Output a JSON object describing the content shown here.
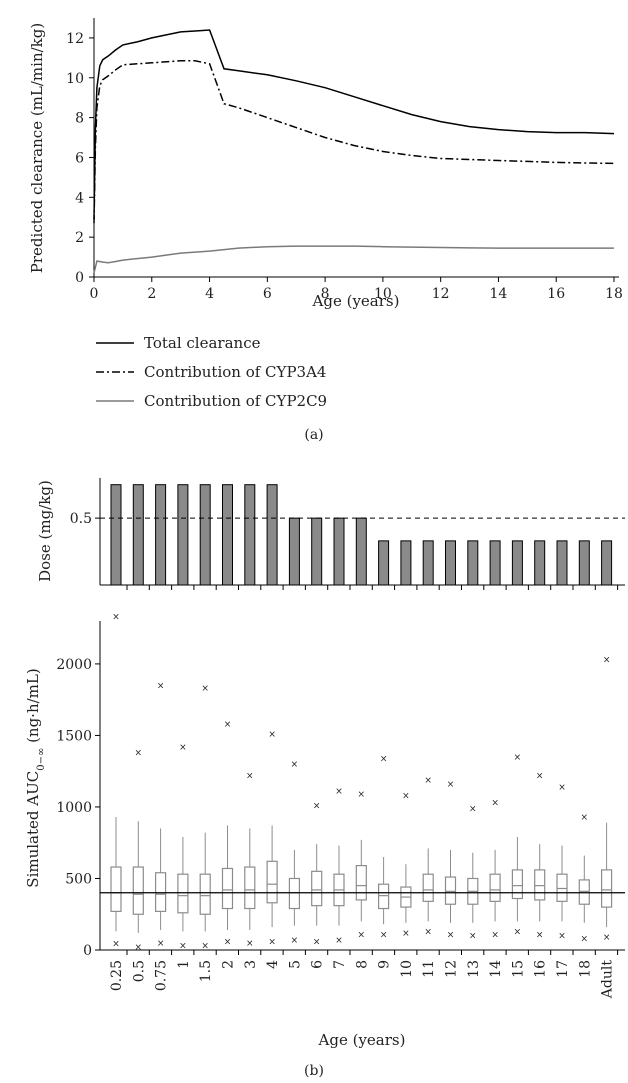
{
  "panel_a": {
    "caption": "(a)",
    "legend": [
      {
        "label": "Total clearance",
        "color": "#000000",
        "dash": "solid"
      },
      {
        "label": "Contribution of CYP3A4",
        "color": "#000000",
        "dash": "dashdot"
      },
      {
        "label": "Contribution of CYP2C9",
        "color": "#7a7a7a",
        "dash": "solid"
      }
    ]
  },
  "panel_b": {
    "caption": "(b)"
  },
  "chart_data": [
    {
      "type": "line",
      "xlabel": "Age (years)",
      "ylabel": "Predicted clearance (mL/min/kg)",
      "xlim": [
        0,
        18
      ],
      "ylim": [
        0,
        13
      ],
      "x_ticks": [
        0,
        2,
        4,
        6,
        8,
        10,
        12,
        14,
        16,
        18
      ],
      "y_ticks": [
        0,
        2,
        4,
        6,
        8,
        10,
        12
      ],
      "series": [
        {
          "name": "Total clearance",
          "color": "#000000",
          "x": [
            0,
            0.05,
            0.1,
            0.2,
            0.3,
            0.5,
            0.75,
            1,
            1.5,
            2,
            2.5,
            3,
            3.5,
            4,
            4.5,
            5,
            6,
            7,
            8,
            9,
            10,
            11,
            12,
            13,
            14,
            15,
            16,
            17,
            18
          ],
          "y": [
            2.9,
            7.5,
            9.5,
            10.6,
            10.9,
            11.1,
            11.4,
            11.65,
            11.8,
            12.0,
            12.15,
            12.3,
            12.35,
            12.4,
            10.45,
            10.35,
            10.15,
            9.85,
            9.5,
            9.05,
            8.6,
            8.15,
            7.8,
            7.55,
            7.4,
            7.3,
            7.25,
            7.25,
            7.2
          ]
        },
        {
          "name": "Contribution of CYP3A4",
          "color": "#000000",
          "x": [
            0,
            0.05,
            0.1,
            0.2,
            0.3,
            0.5,
            0.75,
            1,
            1.5,
            2,
            2.5,
            3,
            3.5,
            4,
            4.5,
            5,
            6,
            7,
            8,
            9,
            10,
            11,
            12,
            13,
            14,
            15,
            16,
            17,
            18
          ],
          "y": [
            2.7,
            6.5,
            8.5,
            9.6,
            9.9,
            10.1,
            10.4,
            10.65,
            10.7,
            10.75,
            10.8,
            10.85,
            10.85,
            10.7,
            8.7,
            8.5,
            8.0,
            7.5,
            7.0,
            6.6,
            6.3,
            6.1,
            5.95,
            5.9,
            5.85,
            5.8,
            5.75,
            5.72,
            5.7
          ]
        },
        {
          "name": "Contribution of CYP2C9",
          "color": "#7a7a7a",
          "x": [
            0,
            0.1,
            0.2,
            0.3,
            0.5,
            0.75,
            1,
            2,
            3,
            4,
            5,
            6,
            7,
            8,
            9,
            10,
            11,
            12,
            13,
            14,
            15,
            16,
            17,
            18
          ],
          "y": [
            0.2,
            0.8,
            0.78,
            0.75,
            0.72,
            0.78,
            0.85,
            1.0,
            1.2,
            1.3,
            1.45,
            1.52,
            1.55,
            1.55,
            1.55,
            1.52,
            1.5,
            1.48,
            1.46,
            1.45,
            1.45,
            1.45,
            1.45,
            1.45
          ]
        }
      ]
    },
    {
      "type": "bar",
      "ylabel": "Dose (mg/kg)",
      "y_ticks": [
        0.5
      ],
      "reference_line": 0.5,
      "ylim": [
        0,
        0.8
      ],
      "categories": [
        "0.25",
        "0.5",
        "0.75",
        "1",
        "1.5",
        "2",
        "3",
        "4",
        "5",
        "6",
        "7",
        "8",
        "9",
        "10",
        "11",
        "12",
        "13",
        "14",
        "15",
        "16",
        "17",
        "18",
        "Adult"
      ],
      "values": [
        0.75,
        0.75,
        0.75,
        0.75,
        0.75,
        0.75,
        0.75,
        0.75,
        0.5,
        0.5,
        0.5,
        0.5,
        0.33,
        0.33,
        0.33,
        0.33,
        0.33,
        0.33,
        0.33,
        0.33,
        0.33,
        0.33,
        0.33
      ]
    },
    {
      "type": "box",
      "xlabel": "Age (years)",
      "ylabel_main": "Simulated AUC",
      "ylabel_sub": "0−∞",
      "ylabel_unit": " (ng·h/mL)",
      "ylim": [
        0,
        2300
      ],
      "y_ticks": [
        0,
        500,
        1000,
        1500,
        2000
      ],
      "reference_line": 400,
      "categories": [
        "0.25",
        "0.5",
        "0.75",
        "1",
        "1.5",
        "2",
        "3",
        "4",
        "5",
        "6",
        "7",
        "8",
        "9",
        "10",
        "11",
        "12",
        "13",
        "14",
        "15",
        "16",
        "17",
        "18",
        "Adult"
      ],
      "boxes": [
        {
          "q1": 270,
          "median": 400,
          "q3": 580,
          "wlo": 130,
          "whi": 930,
          "min": 45,
          "max": 2330
        },
        {
          "q1": 250,
          "median": 390,
          "q3": 580,
          "wlo": 120,
          "whi": 900,
          "min": 20,
          "max": 1380
        },
        {
          "q1": 270,
          "median": 390,
          "q3": 540,
          "wlo": 140,
          "whi": 850,
          "min": 50,
          "max": 1850
        },
        {
          "q1": 260,
          "median": 380,
          "q3": 530,
          "wlo": 130,
          "whi": 790,
          "min": 30,
          "max": 1420
        },
        {
          "q1": 250,
          "median": 380,
          "q3": 530,
          "wlo": 130,
          "whi": 820,
          "min": 30,
          "max": 1830
        },
        {
          "q1": 290,
          "median": 420,
          "q3": 570,
          "wlo": 140,
          "whi": 870,
          "min": 60,
          "max": 1580
        },
        {
          "q1": 290,
          "median": 420,
          "q3": 580,
          "wlo": 140,
          "whi": 850,
          "min": 50,
          "max": 1220
        },
        {
          "q1": 330,
          "median": 460,
          "q3": 620,
          "wlo": 160,
          "whi": 870,
          "min": 60,
          "max": 1510
        },
        {
          "q1": 290,
          "median": 400,
          "q3": 500,
          "wlo": 170,
          "whi": 700,
          "min": 70,
          "max": 1300
        },
        {
          "q1": 310,
          "median": 420,
          "q3": 550,
          "wlo": 170,
          "whi": 740,
          "min": 60,
          "max": 1010
        },
        {
          "q1": 310,
          "median": 420,
          "q3": 530,
          "wlo": 170,
          "whi": 730,
          "min": 70,
          "max": 1110
        },
        {
          "q1": 350,
          "median": 450,
          "q3": 590,
          "wlo": 200,
          "whi": 770,
          "min": 110,
          "max": 1090
        },
        {
          "q1": 290,
          "median": 380,
          "q3": 460,
          "wlo": 180,
          "whi": 650,
          "min": 110,
          "max": 1340
        },
        {
          "q1": 300,
          "median": 370,
          "q3": 440,
          "wlo": 190,
          "whi": 600,
          "min": 120,
          "max": 1080
        },
        {
          "q1": 340,
          "median": 420,
          "q3": 530,
          "wlo": 200,
          "whi": 710,
          "min": 130,
          "max": 1190
        },
        {
          "q1": 320,
          "median": 410,
          "q3": 510,
          "wlo": 190,
          "whi": 700,
          "min": 110,
          "max": 1160
        },
        {
          "q1": 320,
          "median": 410,
          "q3": 500,
          "wlo": 190,
          "whi": 680,
          "min": 100,
          "max": 990
        },
        {
          "q1": 340,
          "median": 420,
          "q3": 530,
          "wlo": 200,
          "whi": 700,
          "min": 110,
          "max": 1030
        },
        {
          "q1": 360,
          "median": 450,
          "q3": 560,
          "wlo": 200,
          "whi": 790,
          "min": 130,
          "max": 1350
        },
        {
          "q1": 350,
          "median": 450,
          "q3": 560,
          "wlo": 200,
          "whi": 740,
          "min": 110,
          "max": 1220
        },
        {
          "q1": 340,
          "median": 430,
          "q3": 530,
          "wlo": 200,
          "whi": 730,
          "min": 100,
          "max": 1140
        },
        {
          "q1": 320,
          "median": 410,
          "q3": 490,
          "wlo": 190,
          "whi": 660,
          "min": 80,
          "max": 930
        },
        {
          "q1": 300,
          "median": 420,
          "q3": 560,
          "wlo": 160,
          "whi": 890,
          "min": 90,
          "max": 2030
        }
      ]
    }
  ]
}
